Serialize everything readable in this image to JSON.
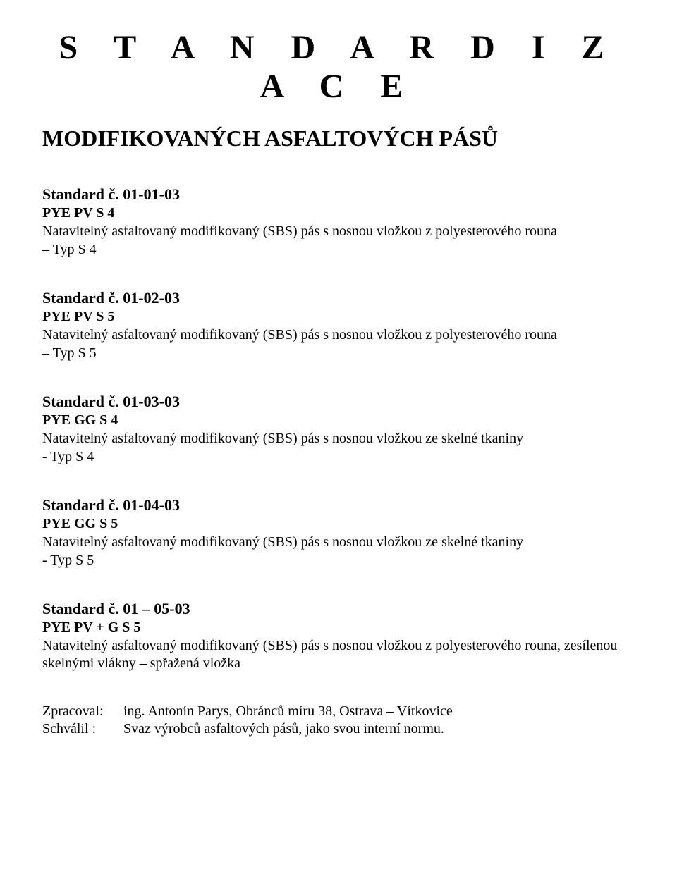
{
  "title": "S T A N D A R D I Z A C E",
  "subtitle": "MODIFIKOVANÝCH ASFALTOVÝCH PÁSŮ",
  "standards": [
    {
      "heading": "Standard č. 01-01-03",
      "code": "PYE PV S 4",
      "desc": "Natavitelný asfaltovaný modifikovaný (SBS) pás s nosnou vložkou z polyesterového rouna",
      "type": "– Typ S 4"
    },
    {
      "heading": "Standard č. 01-02-03",
      "code": "PYE PV S 5",
      "desc": "Natavitelný asfaltovaný modifikovaný (SBS) pás s nosnou vložkou z polyesterového rouna",
      "type": "– Typ S 5"
    },
    {
      "heading": "Standard č. 01-03-03",
      "code": "PYE GG S 4",
      "desc": "Natavitelný asfaltovaný modifikovaný (SBS) pás s nosnou vložkou ze skelné tkaniny",
      "type": "- Typ S 4"
    },
    {
      "heading": "Standard č. 01-04-03",
      "code": "PYE GG S 5",
      "desc": "Natavitelný asfaltovaný modifikovaný (SBS) pás s nosnou vložkou ze skelné tkaniny",
      "type": "- Typ S 5"
    },
    {
      "heading": "Standard č. 01 – 05-03",
      "code": "PYE PV + G S 5",
      "desc": "Natavitelný asfaltovaný modifikovaný (SBS) pás s nosnou vložkou z polyesterového rouna, zesílenou skelnými vlákny – spřažená vložka",
      "type": ""
    }
  ],
  "footer": {
    "zpracoval_label": "Zpracoval:",
    "zpracoval_value": "ing. Antonín Parys, Obránců míru 38, Ostrava – Vítkovice",
    "schvalil_label": "Schválil :",
    "schvalil_value": "Svaz výrobců asfaltových pásů, jako svou interní normu."
  }
}
